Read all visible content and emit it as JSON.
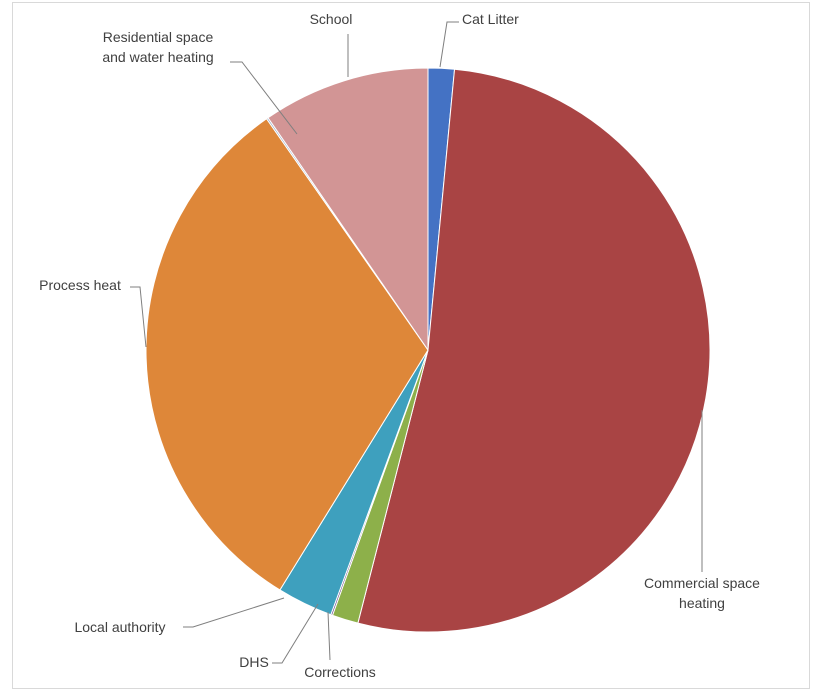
{
  "chart_data": {
    "type": "pie",
    "title": "",
    "start_angle_deg": 0,
    "direction": "clockwise",
    "slices": [
      {
        "label": "Cat Litter",
        "label_lines": [
          "Cat Litter"
        ],
        "value": 1.5,
        "color": "#4472C4"
      },
      {
        "label": "Commercial space heating",
        "label_lines": [
          "Commercial space",
          "heating"
        ],
        "value": 52.5,
        "color": "#A94444"
      },
      {
        "label": "Corrections",
        "label_lines": [
          "Corrections"
        ],
        "value": 1.5,
        "color": "#8DB04A"
      },
      {
        "label": "DHS",
        "label_lines": [
          "DHS"
        ],
        "value": 0.1,
        "color": "#6E4F8F"
      },
      {
        "label": "Local authority",
        "label_lines": [
          "Local authority"
        ],
        "value": 3.2,
        "color": "#3EA0BE"
      },
      {
        "label": "Process heat",
        "label_lines": [
          "Process heat"
        ],
        "value": 31.5,
        "color": "#DE8739"
      },
      {
        "label": "Residential space and water heating",
        "label_lines": [
          "Residential space",
          "and water heating"
        ],
        "value": 0.1,
        "color": "#9BAEC8"
      },
      {
        "label": "School",
        "label_lines": [
          "School"
        ],
        "value": 9.6,
        "color": "#D29595"
      }
    ],
    "legend": "none",
    "data_labels": "category names with leader lines"
  }
}
